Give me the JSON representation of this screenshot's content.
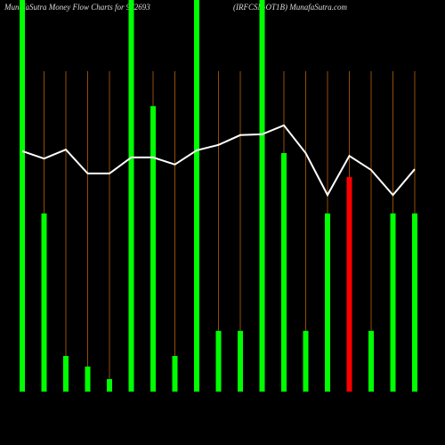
{
  "chart_data": {
    "type": "bar-line",
    "title": "MunafaSutra  Money Flow  Charts for 972693",
    "subtitle": "(IRFCSN-OT1B) MunafaSutra.com",
    "categories": [
      null,
      null,
      null,
      null,
      null,
      null,
      null,
      null,
      null,
      null,
      null,
      null,
      null,
      null,
      null,
      null,
      null,
      null,
      null
    ],
    "ylim": [
      0,
      100
    ],
    "series": [
      {
        "type": "bar",
        "colors": [
          "#00ff00",
          "#00ff00",
          "#00ff00",
          "#00ff00",
          "#00ff00",
          "#00ff00",
          "#00ff00",
          "#00ff00",
          "#00ff00",
          "#00ff00",
          "#00ff00",
          "#00ff00",
          "#00ff00",
          "#00ff00",
          "#00ff00",
          "#ff0000",
          "#00ff00",
          "#00ff00",
          "#00ff00"
        ],
        "values": [
          100,
          45.5,
          9.1,
          6.4,
          3.2,
          100,
          72.9,
          9.1,
          100,
          15.5,
          15.5,
          100,
          60.9,
          15.5,
          45.5,
          54.8,
          15.5,
          45.5,
          45.5
        ]
      },
      {
        "type": "line",
        "color": "#ffffff",
        "values": [
          61.4,
          59.5,
          61.8,
          55.7,
          55.7,
          59.8,
          59.8,
          58,
          61.6,
          63,
          65.5,
          65.7,
          68,
          60.9,
          50.2,
          60.2,
          56.6,
          50.2,
          56.8
        ]
      }
    ]
  }
}
